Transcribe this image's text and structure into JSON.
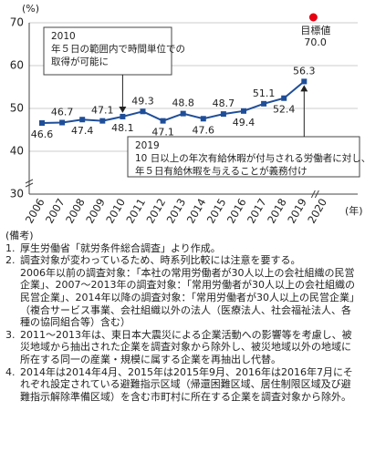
{
  "chart_data": {
    "type": "line",
    "y_unit": "(%)",
    "x_unit": "(年)",
    "categories": [
      "2006",
      "2007",
      "2008",
      "2009",
      "2010",
      "2011",
      "2012",
      "2013",
      "2014",
      "2015",
      "2016",
      "2017",
      "2018",
      "2019",
      "2020"
    ],
    "series": [
      {
        "color": "#1f4e99",
        "values": [
          46.6,
          46.7,
          47.4,
          47.1,
          48.1,
          49.3,
          47.1,
          48.8,
          47.6,
          48.7,
          49.4,
          51.1,
          52.4,
          56.3,
          null
        ]
      },
      {
        "name": "目標値",
        "color": "#e60012",
        "values": [
          null,
          null,
          null,
          null,
          null,
          null,
          null,
          null,
          null,
          null,
          null,
          null,
          null,
          null,
          70.0
        ],
        "value_labels": [
          null,
          null,
          null,
          null,
          null,
          null,
          null,
          null,
          null,
          null,
          null,
          null,
          null,
          null,
          "70.0"
        ]
      }
    ],
    "ylim": [
      30,
      70
    ],
    "yticks": [
      30,
      40,
      50,
      60,
      70
    ],
    "grid": true,
    "annotations": [
      {
        "lines": [
          "2010",
          "年５日の範囲内で時間単位での",
          "取得が可能に"
        ]
      },
      {
        "lines": [
          "2019",
          "10 日以上の年次有給休暇が付与される労働者に対し、",
          "年５日有給休暇を与えることが義務付け"
        ]
      }
    ]
  },
  "notes": {
    "heading": "(備考)",
    "items": [
      {
        "number": "1.",
        "paragraphs": [
          "厚生労働省「就労条件総合調査」より作成。"
        ]
      },
      {
        "number": "2.",
        "paragraphs": [
          "調査対象が変わっているため、時系列比較には注意を要する。",
          "2006年以前の調査対象：「本社の常用労働者が30人以上の会社組織の民営企業」、2007～2013年の調査対象：「常用労働者が30人以上の会社組織の民営企業」、2014年以降の調査対象：「常用労働者が30人以上の民営企業」（複合サービス事業、会社組織以外の法人（医療法人、社会福祉法人、各種の協同組合等）含む）"
        ]
      },
      {
        "number": "3.",
        "paragraphs": [
          "2011～2013年は、東日本大震災による企業活動への影響等を考慮し、被災地域から抽出された企業を調査対象から除外し、被災地域以外の地域に所在する同一の産業・規模に属する企業を再抽出し代替。"
        ]
      },
      {
        "number": "4.",
        "paragraphs": [
          "2014年は2014年4月、2015年は2015年9月、2016年は2016年7月にそれぞれ設定されている避難指示区域（帰還困難区域、居住制限区域及び避難指示解除準備区域）を含む市町村に所在する企業を調査対象から除外。"
        ]
      }
    ]
  }
}
